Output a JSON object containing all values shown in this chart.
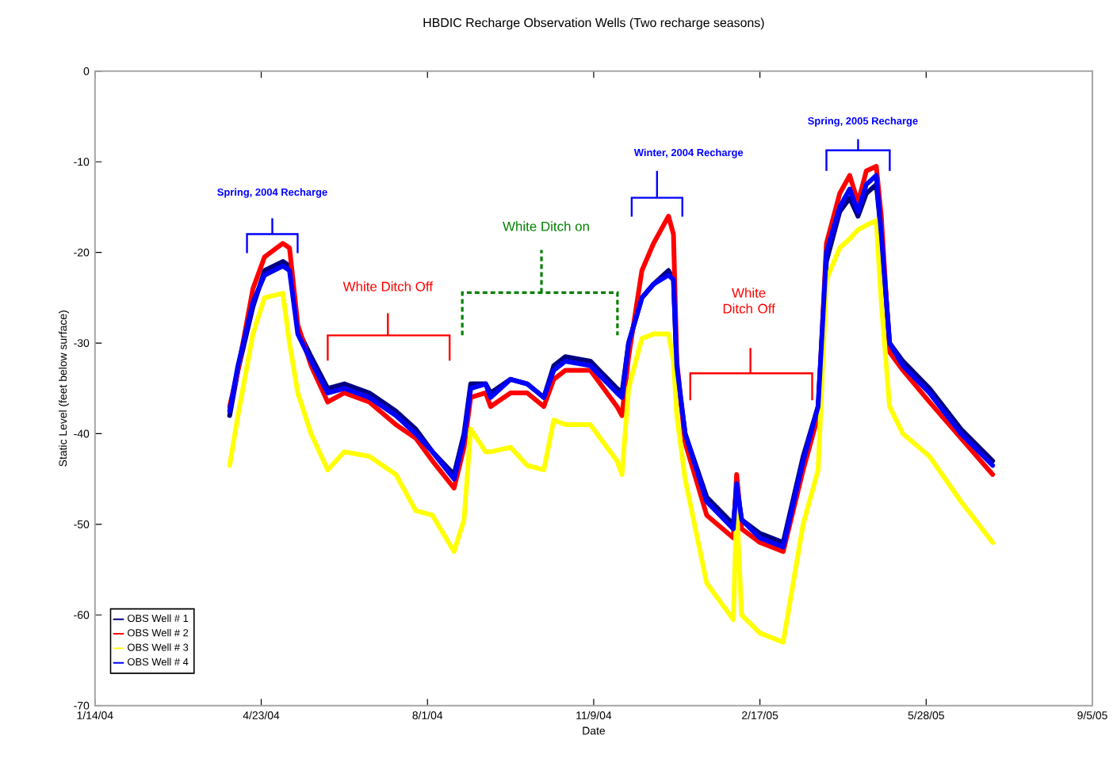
{
  "chart_data": {
    "type": "line",
    "title": "HBDIC Recharge Observation Wells (Two recharge seasons)",
    "xlabel": "Date",
    "ylabel": "Static Level (feet below surface)",
    "x": [
      "2004-04-04",
      "2004-04-09",
      "2004-04-18",
      "2004-04-25",
      "2004-05-06",
      "2004-05-10",
      "2004-05-15",
      "2004-05-23",
      "2004-06-02",
      "2004-06-12",
      "2004-06-27",
      "2004-07-13",
      "2004-07-25",
      "2004-08-04",
      "2004-08-17",
      "2004-08-23",
      "2004-08-27",
      "2004-09-05",
      "2004-09-08",
      "2004-09-20",
      "2004-09-30",
      "2004-10-10",
      "2004-10-16",
      "2004-10-23",
      "2004-11-07",
      "2004-11-23",
      "2004-11-26",
      "2004-11-30",
      "2004-12-08",
      "2004-12-15",
      "2004-12-24",
      "2004-12-27",
      "2004-12-29",
      "2005-01-03",
      "2005-01-16",
      "2005-02-01",
      "2005-02-03",
      "2005-02-06",
      "2005-02-17",
      "2005-03-03",
      "2005-03-15",
      "2005-03-24",
      "2005-03-29",
      "2005-04-06",
      "2005-04-12",
      "2005-04-17",
      "2005-04-22",
      "2005-04-28",
      "2005-05-01",
      "2005-05-06",
      "2005-05-14",
      "2005-05-30",
      "2005-06-18",
      "2005-07-07"
    ],
    "series": [
      {
        "name": "OBS Well # 1",
        "color": "#000080",
        "values": [
          -38,
          -33,
          -26,
          -22,
          -21,
          -21.5,
          -28.5,
          -31.5,
          -35,
          -34.5,
          -35.5,
          -37.5,
          -39.5,
          -42,
          -44.5,
          -40,
          -34.5,
          -34.5,
          -35.5,
          -34,
          -34.5,
          -36,
          -32.5,
          -31.5,
          -32,
          -35,
          -35.5,
          -30,
          -25,
          -23.5,
          -22,
          -23,
          -33,
          -40,
          -47,
          -50,
          -46,
          -49.5,
          -51,
          -52,
          -42.5,
          -37,
          -21,
          -15.5,
          -14,
          -16,
          -13.5,
          -12.5,
          -18,
          -30,
          -32,
          -35,
          -39.5,
          -43
        ]
      },
      {
        "name": "OBS Well # 2",
        "color": "#ff0000",
        "values": [
          -37,
          -33,
          -24,
          -20.5,
          -19,
          -19.5,
          -28,
          -32.5,
          -36.5,
          -35.5,
          -36.5,
          -39,
          -40.5,
          -43,
          -46,
          -41.5,
          -36,
          -35.5,
          -37,
          -35.5,
          -35.5,
          -37,
          -34,
          -33,
          -33,
          -37,
          -38,
          -31.5,
          -22,
          -19,
          -16,
          -18,
          -32,
          -41,
          -49,
          -51.5,
          -44.5,
          -50.5,
          -52,
          -53,
          -44,
          -38,
          -19,
          -13.5,
          -11.5,
          -14.5,
          -11,
          -10.5,
          -16,
          -31,
          -33,
          -36.5,
          -40.5,
          -44.5
        ]
      },
      {
        "name": "OBS Well # 3",
        "color": "#ffff00",
        "values": [
          -43.5,
          -38,
          -29,
          -25,
          -24.5,
          -30,
          -35.5,
          -40,
          -44,
          -42,
          -42.5,
          -44.5,
          -48.5,
          -49,
          -53,
          -49.5,
          -39.5,
          -42,
          -42,
          -41.5,
          -43.5,
          -44,
          -38.5,
          -39,
          -39,
          -43,
          -44.5,
          -35,
          -29.5,
          -29,
          -29,
          -32,
          -38,
          -45,
          -56.5,
          -60.5,
          -48,
          -60,
          -62,
          -63,
          -50,
          -44,
          -23,
          -19.5,
          -18.5,
          -17.5,
          -17,
          -16.5,
          -25.5,
          -37,
          -40,
          -42.5,
          -47.5,
          -52
        ]
      },
      {
        "name": "OBS Well # 4",
        "color": "#0000ff",
        "values": [
          -37.5,
          -32.5,
          -25.5,
          -22.5,
          -21.5,
          -22,
          -29,
          -32,
          -35.5,
          -35,
          -36,
          -38,
          -40,
          -42,
          -45,
          -40.5,
          -35,
          -34.5,
          -36,
          -34,
          -34.5,
          -36,
          -33,
          -32,
          -32.5,
          -35.5,
          -36,
          -30,
          -25,
          -23.5,
          -22.5,
          -23,
          -32.5,
          -40,
          -47.5,
          -50.5,
          -45.5,
          -49.5,
          -51.5,
          -52.5,
          -43,
          -37,
          -20,
          -15,
          -13,
          -15.5,
          -12.5,
          -11.5,
          -18,
          -30,
          -32.5,
          -35.5,
          -40,
          -43.5
        ]
      }
    ],
    "xlim": [
      "2004-01-14",
      "2005-09-05"
    ],
    "xticks": [
      {
        "value": "2004-01-14",
        "label": "1/14/04"
      },
      {
        "value": "2004-04-23",
        "label": "4/23/04"
      },
      {
        "value": "2004-08-01",
        "label": "8/1/04"
      },
      {
        "value": "2004-11-09",
        "label": "11/9/04"
      },
      {
        "value": "2005-02-17",
        "label": "2/17/05"
      },
      {
        "value": "2005-05-28",
        "label": "5/28/05"
      },
      {
        "value": "2005-09-05",
        "label": "9/5/05"
      }
    ],
    "ylim": [
      -70,
      0
    ],
    "yticks": [
      -70,
      -60,
      -50,
      -40,
      -30,
      -20,
      -10,
      0
    ],
    "annotations": [
      "Spring, 2004 Recharge",
      "White Ditch Off",
      "White Ditch on",
      "Winter, 2004 Recharge",
      "White Ditch Off",
      "Spring, 2005 Recharge"
    ],
    "legend": "bottom left",
    "marker": "none",
    "line_style": "solid",
    "grid": false
  }
}
